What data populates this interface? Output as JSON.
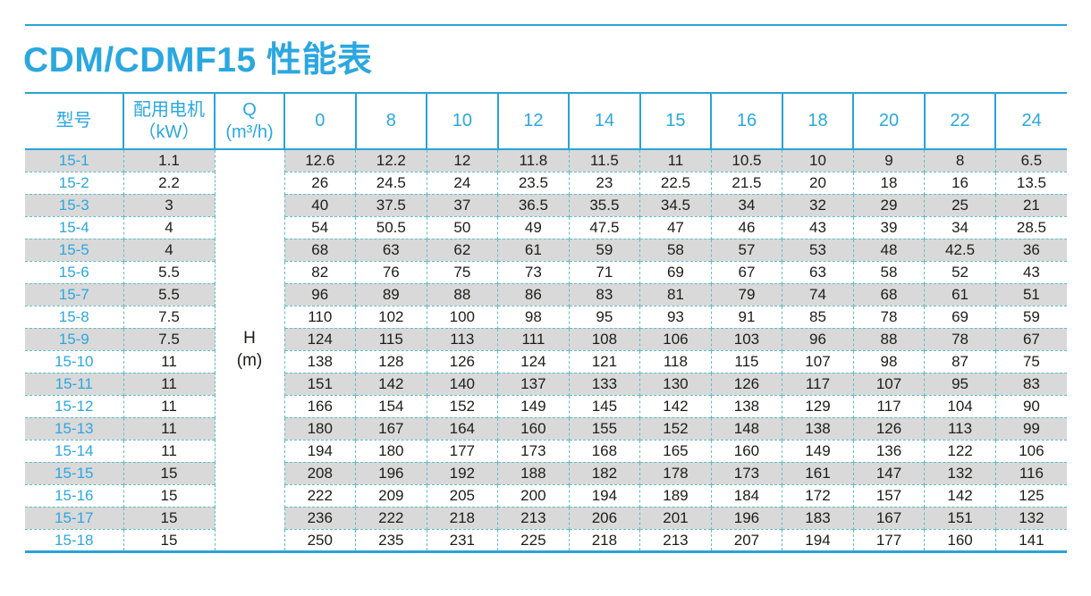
{
  "page": {
    "title": "CDM/CDMF15 性能表"
  },
  "colors": {
    "accent_line": "#29a3d8",
    "accent_text": "#2ba7e0",
    "row_alt_bg": "#d9d9d9",
    "dash_border": "#62bcc6",
    "value_text": "#1d1d1b"
  },
  "table": {
    "headers": {
      "model": "型号",
      "motor_line1": "配用电机",
      "motor_line2": "（kW）",
      "flow_line1": "Q",
      "flow_line2": "(m³/h)",
      "flow_values": [
        "0",
        "8",
        "10",
        "12",
        "14",
        "15",
        "16",
        "18",
        "20",
        "22",
        "24"
      ]
    },
    "head_unit": {
      "line1": "H",
      "line2": "(m)"
    },
    "rows": [
      {
        "model": "15-1",
        "motor": "1.1",
        "values": [
          "12.6",
          "12.2",
          "12",
          "11.8",
          "11.5",
          "11",
          "10.5",
          "10",
          "9",
          "8",
          "6.5"
        ]
      },
      {
        "model": "15-2",
        "motor": "2.2",
        "values": [
          "26",
          "24.5",
          "24",
          "23.5",
          "23",
          "22.5",
          "21.5",
          "20",
          "18",
          "16",
          "13.5"
        ]
      },
      {
        "model": "15-3",
        "motor": "3",
        "values": [
          "40",
          "37.5",
          "37",
          "36.5",
          "35.5",
          "34.5",
          "34",
          "32",
          "29",
          "25",
          "21"
        ]
      },
      {
        "model": "15-4",
        "motor": "4",
        "values": [
          "54",
          "50.5",
          "50",
          "49",
          "47.5",
          "47",
          "46",
          "43",
          "39",
          "34",
          "28.5"
        ]
      },
      {
        "model": "15-5",
        "motor": "4",
        "values": [
          "68",
          "63",
          "62",
          "61",
          "59",
          "58",
          "57",
          "53",
          "48",
          "42.5",
          "36"
        ]
      },
      {
        "model": "15-6",
        "motor": "5.5",
        "values": [
          "82",
          "76",
          "75",
          "73",
          "71",
          "69",
          "67",
          "63",
          "58",
          "52",
          "43"
        ]
      },
      {
        "model": "15-7",
        "motor": "5.5",
        "values": [
          "96",
          "89",
          "88",
          "86",
          "83",
          "81",
          "79",
          "74",
          "68",
          "61",
          "51"
        ]
      },
      {
        "model": "15-8",
        "motor": "7.5",
        "values": [
          "110",
          "102",
          "100",
          "98",
          "95",
          "93",
          "91",
          "85",
          "78",
          "69",
          "59"
        ]
      },
      {
        "model": "15-9",
        "motor": "7.5",
        "values": [
          "124",
          "115",
          "113",
          "111",
          "108",
          "106",
          "103",
          "96",
          "88",
          "78",
          "67"
        ]
      },
      {
        "model": "15-10",
        "motor": "11",
        "values": [
          "138",
          "128",
          "126",
          "124",
          "121",
          "118",
          "115",
          "107",
          "98",
          "87",
          "75"
        ]
      },
      {
        "model": "15-11",
        "motor": "11",
        "values": [
          "151",
          "142",
          "140",
          "137",
          "133",
          "130",
          "126",
          "117",
          "107",
          "95",
          "83"
        ]
      },
      {
        "model": "15-12",
        "motor": "11",
        "values": [
          "166",
          "154",
          "152",
          "149",
          "145",
          "142",
          "138",
          "129",
          "117",
          "104",
          "90"
        ]
      },
      {
        "model": "15-13",
        "motor": "11",
        "values": [
          "180",
          "167",
          "164",
          "160",
          "155",
          "152",
          "148",
          "138",
          "126",
          "113",
          "99"
        ]
      },
      {
        "model": "15-14",
        "motor": "11",
        "values": [
          "194",
          "180",
          "177",
          "173",
          "168",
          "165",
          "160",
          "149",
          "136",
          "122",
          "106"
        ]
      },
      {
        "model": "15-15",
        "motor": "15",
        "values": [
          "208",
          "196",
          "192",
          "188",
          "182",
          "178",
          "173",
          "161",
          "147",
          "132",
          "116"
        ]
      },
      {
        "model": "15-16",
        "motor": "15",
        "values": [
          "222",
          "209",
          "205",
          "200",
          "194",
          "189",
          "184",
          "172",
          "157",
          "142",
          "125"
        ]
      },
      {
        "model": "15-17",
        "motor": "15",
        "values": [
          "236",
          "222",
          "218",
          "213",
          "206",
          "201",
          "196",
          "183",
          "167",
          "151",
          "132"
        ]
      },
      {
        "model": "15-18",
        "motor": "15",
        "values": [
          "250",
          "235",
          "231",
          "225",
          "218",
          "213",
          "207",
          "194",
          "177",
          "160",
          "141"
        ]
      }
    ]
  }
}
